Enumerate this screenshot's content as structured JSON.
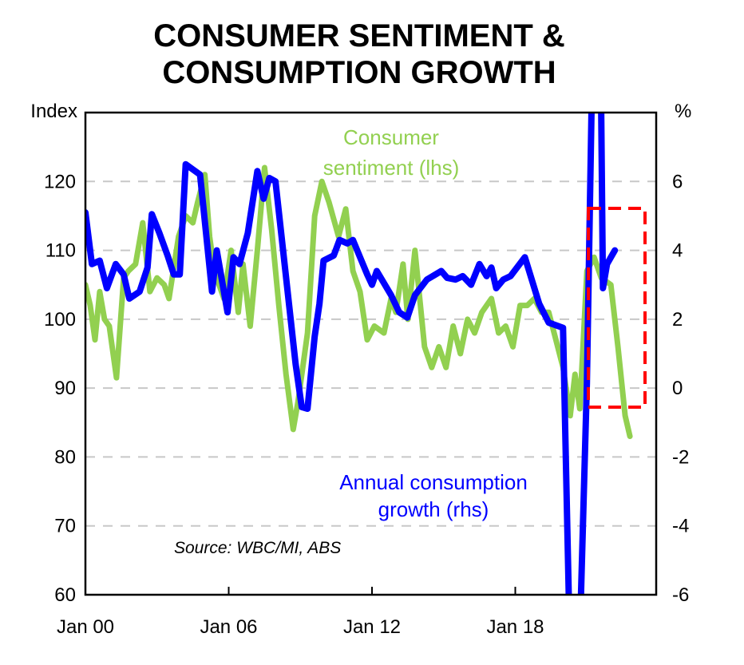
{
  "chart_data": {
    "type": "line",
    "title": [
      "CONSUMER SENTIMENT &",
      "CONSUMPTION GROWTH"
    ],
    "ylabel_left": "Index",
    "ylabel_right": "%",
    "source": "Source: WBC/MI, ABS",
    "ylim_left": [
      60,
      130
    ],
    "ylim_right": [
      -6,
      8
    ],
    "yticks_left": [
      60,
      70,
      80,
      90,
      100,
      110,
      120
    ],
    "yticks_right": [
      -6,
      -4,
      -2,
      0,
      2,
      4,
      6
    ],
    "xlim": [
      2000,
      2023.9
    ],
    "xticks": [
      {
        "value": 2000,
        "label": "Jan 00"
      },
      {
        "value": 2006,
        "label": "Jan 06"
      },
      {
        "value": 2012,
        "label": "Jan 12"
      },
      {
        "value": 2018,
        "label": "Jan 18"
      }
    ],
    "grid": true,
    "series": [
      {
        "name": "Consumer sentiment (lhs)",
        "label_lines": [
          "Consumer",
          "sentiment (lhs)"
        ],
        "axis": "left",
        "color": "#92d050",
        "x": [
          2000.0,
          2000.2,
          2000.4,
          2000.6,
          2000.8,
          2001.0,
          2001.3,
          2001.6,
          2001.8,
          2002.1,
          2002.4,
          2002.7,
          2003.0,
          2003.3,
          2003.5,
          2003.9,
          2004.2,
          2004.5,
          2004.7,
          2005.0,
          2005.2,
          2005.4,
          2005.8,
          2006.1,
          2006.4,
          2006.6,
          2006.9,
          2007.2,
          2007.5,
          2007.8,
          2008.1,
          2008.4,
          2008.7,
          2008.9,
          2009.3,
          2009.6,
          2009.9,
          2010.2,
          2010.6,
          2010.9,
          2011.2,
          2011.5,
          2011.8,
          2012.1,
          2012.5,
          2012.8,
          2013.0,
          2013.3,
          2013.5,
          2013.8,
          2014.2,
          2014.5,
          2014.8,
          2015.1,
          2015.4,
          2015.7,
          2016.0,
          2016.3,
          2016.6,
          2017.0,
          2017.3,
          2017.6,
          2017.9,
          2018.2,
          2018.5,
          2018.8,
          2019.1,
          2019.4,
          2019.7,
          2020.0,
          2020.3,
          2020.5,
          2020.7,
          2021.0,
          2021.3,
          2021.6,
          2022.0,
          2022.3,
          2022.6,
          2022.8
        ],
        "y": [
          105,
          102,
          97,
          104,
          100,
          99,
          91.5,
          106,
          107,
          108,
          114,
          104,
          106,
          105,
          103,
          112,
          115,
          114,
          117,
          121,
          112,
          107,
          103,
          110,
          101,
          108,
          99,
          110,
          122,
          113,
          102,
          92,
          84,
          88,
          98,
          115,
          120,
          117,
          112,
          116,
          107,
          104,
          97,
          99,
          98,
          103,
          101,
          108,
          100,
          110,
          96,
          93,
          96,
          93,
          99,
          95,
          100,
          98,
          101,
          103,
          98,
          99,
          96,
          102,
          102,
          103,
          101,
          101,
          97,
          93,
          86,
          92,
          87,
          107,
          109,
          106,
          105,
          96,
          86,
          83
        ]
      },
      {
        "name": "Annual consumption growth (rhs)",
        "label_lines": [
          "Annual consumption",
          "growth (rhs)"
        ],
        "axis": "right",
        "color": "#0000ff",
        "x": [
          2000.0,
          2000.27,
          2000.6,
          2000.9,
          2001.27,
          2001.6,
          2001.84,
          2002.27,
          2002.6,
          2002.78,
          2003.1,
          2003.44,
          2003.7,
          2003.95,
          2004.2,
          2004.8,
          2005.3,
          2005.5,
          2005.95,
          2006.2,
          2006.45,
          2006.8,
          2007.2,
          2007.46,
          2007.7,
          2007.96,
          2008.8,
          2009.06,
          2009.3,
          2009.6,
          2009.8,
          2009.97,
          2010.4,
          2010.64,
          2010.97,
          2011.2,
          2011.47,
          2011.8,
          2012.0,
          2012.2,
          2012.8,
          2013.14,
          2013.48,
          2013.8,
          2014.3,
          2014.9,
          2015.15,
          2015.5,
          2015.8,
          2016.15,
          2016.5,
          2016.8,
          2017.0,
          2017.2,
          2017.5,
          2017.8,
          2018.4,
          2019.0,
          2019.4,
          2020.0,
          2020.3,
          2020.67,
          2021.0,
          2021.24,
          2021.57,
          2021.67,
          2021.84,
          2022.17
        ],
        "y": [
          5.1,
          3.6,
          3.7,
          2.9,
          3.6,
          3.3,
          2.6,
          2.8,
          3.5,
          5.05,
          4.5,
          3.85,
          3.3,
          3.3,
          6.5,
          6.2,
          2.8,
          4.0,
          2.2,
          3.8,
          3.6,
          4.5,
          6.3,
          5.5,
          6.1,
          6.0,
          0.7,
          -0.55,
          -0.6,
          1.5,
          2.45,
          3.7,
          3.85,
          4.3,
          4.2,
          4.3,
          3.85,
          3.3,
          3.0,
          3.4,
          2.7,
          2.2,
          2.05,
          2.7,
          3.15,
          3.4,
          3.2,
          3.15,
          3.25,
          3.0,
          3.6,
          3.25,
          3.5,
          2.9,
          3.15,
          3.25,
          3.8,
          2.45,
          1.9,
          1.75,
          -8,
          -8,
          0.15,
          10,
          10,
          2.9,
          3.6,
          4.0
        ]
      }
    ],
    "annotation_box_color": "#ff0000"
  }
}
